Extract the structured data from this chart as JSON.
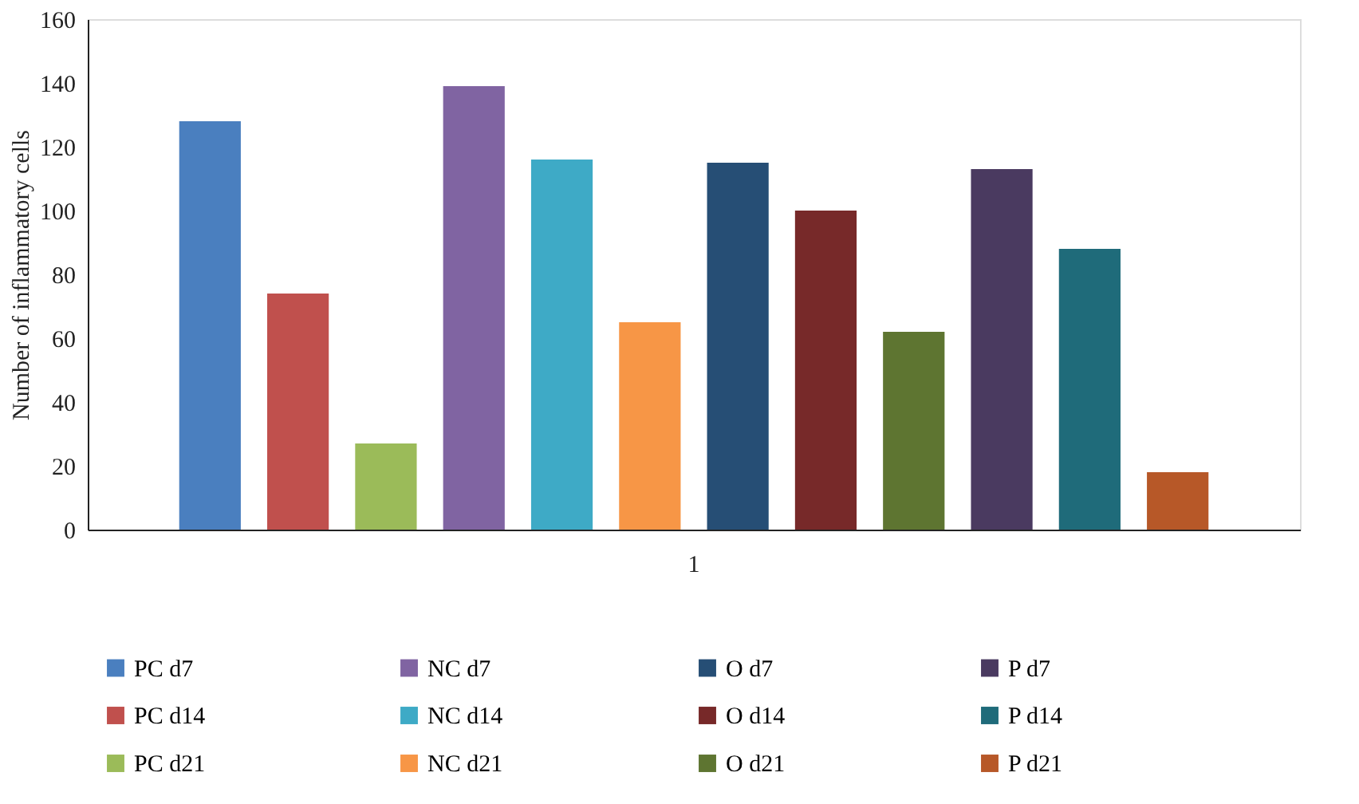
{
  "chart_data": {
    "type": "bar",
    "ylabel": "Number of inflammatory cells",
    "categories": [
      "1"
    ],
    "ylim": [
      0,
      160
    ],
    "yticks": [
      0,
      20,
      40,
      60,
      80,
      100,
      120,
      140,
      160
    ],
    "grid": false,
    "legend": "bottom",
    "series": [
      {
        "name": "PC d7",
        "color": "#4a7fbf",
        "values": [
          128
        ]
      },
      {
        "name": "PC d14",
        "color": "#c0504d",
        "values": [
          74
        ]
      },
      {
        "name": "PC d21",
        "color": "#9bbb59",
        "values": [
          27
        ]
      },
      {
        "name": "NC d7",
        "color": "#8064a2",
        "values": [
          139
        ]
      },
      {
        "name": "NC d14",
        "color": "#3eaac6",
        "values": [
          116
        ]
      },
      {
        "name": "NC d21",
        "color": "#f79646",
        "values": [
          65
        ]
      },
      {
        "name": "O d7",
        "color": "#264e75",
        "values": [
          115
        ]
      },
      {
        "name": "O d14",
        "color": "#772929",
        "values": [
          100
        ]
      },
      {
        "name": "O d21",
        "color": "#5e7531",
        "values": [
          62
        ]
      },
      {
        "name": "P d7",
        "color": "#4a3a60",
        "values": [
          113
        ]
      },
      {
        "name": "P d14",
        "color": "#1f6b7a",
        "values": [
          88
        ]
      },
      {
        "name": "P d21",
        "color": "#b75828",
        "values": [
          18
        ]
      }
    ]
  }
}
